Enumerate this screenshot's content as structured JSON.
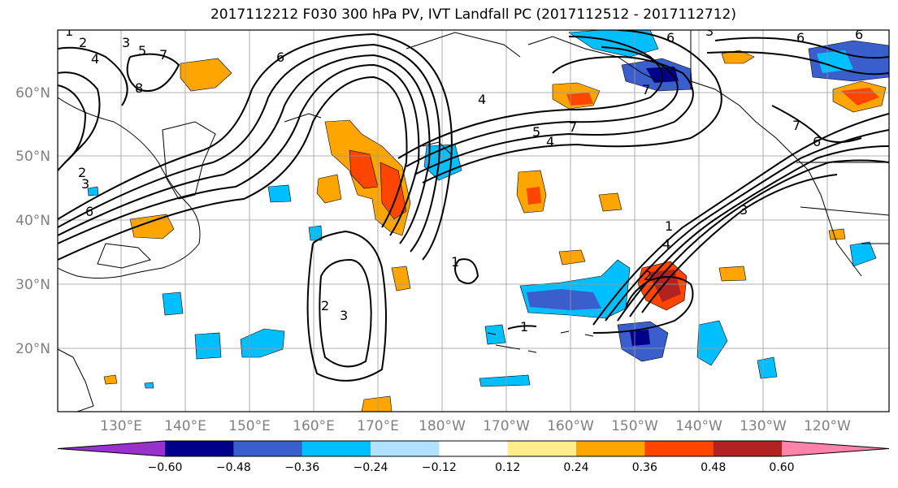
{
  "title": "2017112212 F030 300 hPa PV, IVT Landfall PC (2017112512 - 2017112712)",
  "lat_ticks": [
    "60°N",
    "50°N",
    "40°N",
    "30°N",
    "20°N"
  ],
  "lon_ticks": [
    "130°E",
    "140°E",
    "150°E",
    "160°E",
    "170°E",
    "180°W",
    "170°W",
    "160°W",
    "150°W",
    "140°W",
    "130°W",
    "120°W"
  ],
  "colorbar": {
    "colors": [
      "#9932cc",
      "#00008b",
      "#3a5fcd",
      "#00bfff",
      "#b0e2ff",
      "#ffffff",
      "#ffec8b",
      "#ffa500",
      "#ff4500",
      "#b22222",
      "#ff83aa"
    ],
    "labels": [
      "−0.60",
      "−0.48",
      "−0.36",
      "−0.24",
      "−0.12",
      "0.12",
      "0.24",
      "0.36",
      "0.48",
      "0.60"
    ]
  },
  "contour_labels": [
    "1",
    "2",
    "3",
    "4",
    "5",
    "6",
    "7",
    "8",
    "2",
    "3",
    "4",
    "6",
    "6",
    "6",
    "7",
    "5",
    "4",
    "6",
    "1",
    "2",
    "3",
    "4",
    "7",
    "1",
    "2",
    "3",
    "1",
    "6",
    "7",
    "3"
  ]
}
